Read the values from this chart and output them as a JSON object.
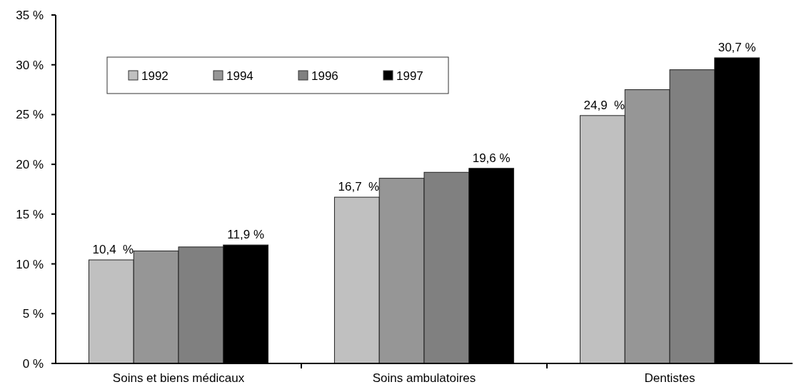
{
  "chart_data": {
    "type": "bar",
    "categories": [
      "Soins et biens médicaux",
      "Soins ambulatoires",
      "Dentistes"
    ],
    "series": [
      {
        "name": "1992",
        "color": "#c0c0c0",
        "values": [
          10.4,
          16.7,
          24.9
        ],
        "value_labels": [
          "10,4  %",
          "16,7  %",
          "24,9  %"
        ]
      },
      {
        "name": "1994",
        "color": "#969696",
        "values": [
          11.3,
          18.6,
          27.5
        ]
      },
      {
        "name": "1996",
        "color": "#808080",
        "values": [
          11.7,
          19.2,
          29.5
        ]
      },
      {
        "name": "1997",
        "color": "#000000",
        "values": [
          11.9,
          19.6,
          30.7
        ],
        "value_labels": [
          "11,9 %",
          "19,6 %",
          "30,7 %"
        ]
      }
    ],
    "ylim": [
      0,
      35
    ],
    "yticks": [
      {
        "value": 0,
        "label": "0 %"
      },
      {
        "value": 5,
        "label": "5 %"
      },
      {
        "value": 10,
        "label": "10 %"
      },
      {
        "value": 15,
        "label": "15 %"
      },
      {
        "value": 20,
        "label": "20 %"
      },
      {
        "value": 25,
        "label": "25 %"
      },
      {
        "value": 30,
        "label": "30 %"
      },
      {
        "value": 35,
        "label": "35 %"
      }
    ],
    "grid": false,
    "legend": "top left"
  }
}
